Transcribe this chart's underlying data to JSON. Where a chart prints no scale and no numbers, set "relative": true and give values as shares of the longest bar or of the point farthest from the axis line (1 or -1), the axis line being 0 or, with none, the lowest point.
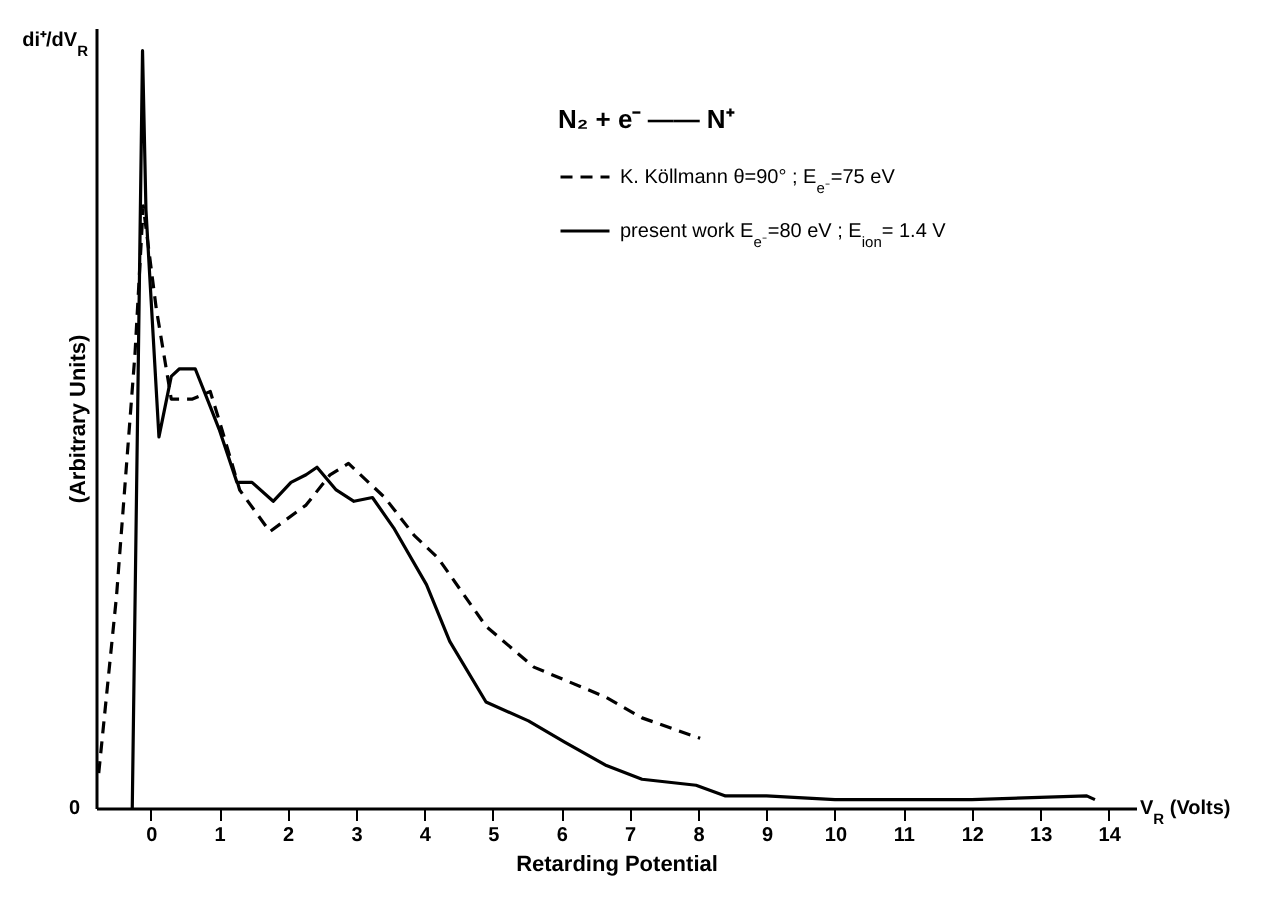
{
  "chart_data": {
    "type": "line",
    "relative": true,
    "xlabel": "Retarding Potential",
    "ylabel": "(Arbitrary Units)",
    "legend_title": "N₂ + e⁻ —— N⁺",
    "legend": "top right",
    "xlim": [
      -0.8,
      14.4
    ],
    "xticks": [
      0,
      1,
      2,
      3,
      4,
      5,
      6,
      7,
      8,
      9,
      10,
      11,
      12,
      13,
      14
    ],
    "annotations": [
      "di⁺/dV$_{R}$",
      "V$_{R}$ (Volts)",
      "0"
    ],
    "series": [
      {
        "name": "K. Köllmann   θ=90° ; E$_{e⁻}$=75 eV",
        "color": "#000000",
        "line_style": "dashed",
        "x": [
          -0.76,
          -0.5,
          -0.23,
          -0.11,
          0.08,
          0.3,
          0.61,
          0.87,
          1.04,
          1.3,
          1.74,
          2.27,
          2.62,
          2.89,
          3.42,
          3.85,
          4.2,
          4.9,
          5.6,
          6.66,
          7.18,
          8.03
        ],
        "values": [
          0.046,
          0.28,
          0.6,
          0.795,
          0.66,
          0.54,
          0.54,
          0.55,
          0.5,
          0.42,
          0.365,
          0.4,
          0.44,
          0.455,
          0.41,
          0.36,
          0.33,
          0.24,
          0.186,
          0.146,
          0.119,
          0.092
        ]
      },
      {
        "name": "present work  E$_{e⁻}$=80 eV ; E$_{ion}$= 1.4 V",
        "color": "#000000",
        "line_style": "solid",
        "x": [
          -0.27,
          -0.12,
          -0.07,
          0.12,
          0.3,
          0.42,
          0.65,
          0.87,
          1.0,
          1.26,
          1.48,
          1.79,
          2.05,
          2.27,
          2.43,
          2.71,
          2.97,
          3.24,
          3.55,
          4.03,
          4.37,
          4.9,
          5.52,
          6.05,
          6.66,
          7.18,
          7.97,
          8.4,
          9.0,
          10.0,
          12.0,
          13.68,
          13.8
        ],
        "values": [
          0,
          1,
          0.79,
          0.49,
          0.57,
          0.58,
          0.58,
          0.53,
          0.5,
          0.43,
          0.43,
          0.405,
          0.43,
          0.44,
          0.45,
          0.42,
          0.405,
          0.41,
          0.37,
          0.295,
          0.22,
          0.14,
          0.115,
          0.087,
          0.056,
          0.038,
          0.03,
          0.016,
          0.016,
          0.011,
          0.011,
          0.016,
          0.011
        ]
      }
    ]
  }
}
